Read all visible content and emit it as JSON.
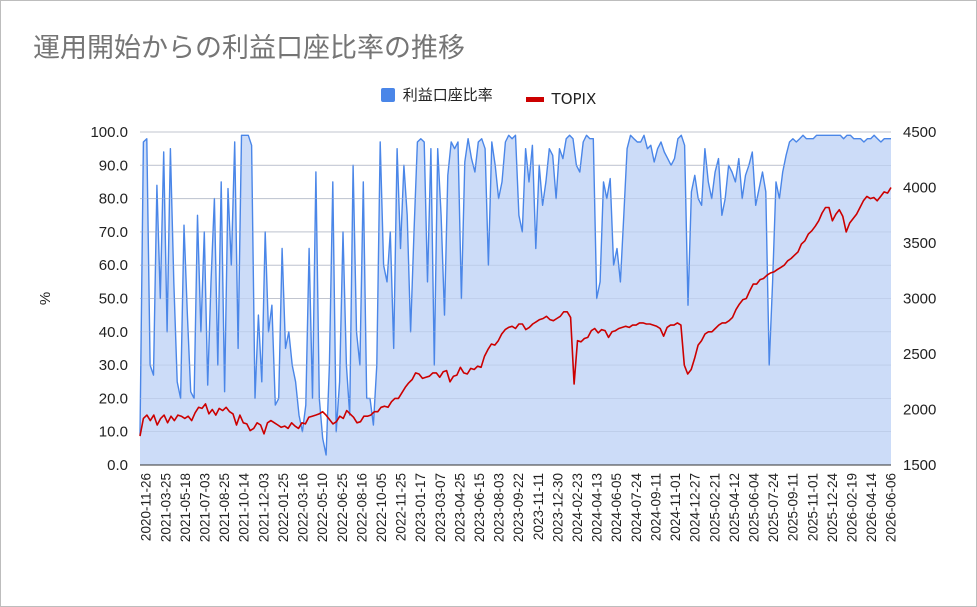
{
  "chart_data": {
    "type": "area",
    "title": "運用開始からの利益口座比率の推移",
    "ylabel_left": "%",
    "ylim_left": [
      0,
      100
    ],
    "yticks_left": [
      "0.0",
      "10.0",
      "20.0",
      "30.0",
      "40.0",
      "50.0",
      "60.0",
      "70.0",
      "80.0",
      "90.0",
      "100.0"
    ],
    "ylim_right": [
      1500,
      4500
    ],
    "yticks_right": [
      "1500",
      "2000",
      "2500",
      "3000",
      "3500",
      "4000",
      "4500"
    ],
    "x_labels": [
      "2020-11-26",
      "2021-03-25",
      "2021-05-18",
      "2021-07-03",
      "2021-08-25",
      "2021-10-14",
      "2021-12-03",
      "2022-01-25",
      "2022-03-16",
      "2022-05-10",
      "2022-06-25",
      "2022-08-16",
      "2022-10-05",
      "2022-11-25",
      "2023-01-17",
      "2023-03-07",
      "2023-04-25",
      "2023-06-15",
      "2023-08-03",
      "2023-09-22",
      "2023-11-11",
      "2023-12-30",
      "2024-02-23",
      "2024-04-13",
      "2024-06-05",
      "2024-07-24",
      "2024-09-11",
      "2024-11-01",
      "2024-12-27",
      "2025-02-21",
      "2025-04-12",
      "2025-06-04",
      "2025-07-24",
      "2025-09-11",
      "2025-11-01",
      "2025-12-24",
      "2026-02-19",
      "2026-04-14",
      "2026-06-06"
    ],
    "series": [
      {
        "name": "利益口座比率",
        "axis": "left",
        "color": "#4a86e8",
        "fill": "#c9daf8",
        "values": [
          9,
          97,
          98,
          30,
          27,
          84,
          50,
          94,
          40,
          95,
          55,
          25,
          20,
          72,
          45,
          22,
          20,
          75,
          40,
          70,
          24,
          55,
          80,
          30,
          85,
          22,
          83,
          60,
          97,
          35,
          99,
          99,
          99,
          96,
          20,
          45,
          25,
          70,
          40,
          48,
          18,
          20,
          65,
          35,
          40,
          30,
          25,
          15,
          10,
          18,
          65,
          20,
          88,
          20,
          8,
          3,
          30,
          85,
          10,
          25,
          70,
          30,
          15,
          90,
          40,
          30,
          85,
          20,
          20,
          12,
          30,
          97,
          60,
          55,
          70,
          35,
          95,
          65,
          90,
          75,
          40,
          70,
          97,
          98,
          97,
          55,
          95,
          30,
          95,
          75,
          45,
          87,
          97,
          95,
          97,
          50,
          91,
          98,
          92,
          88,
          97,
          98,
          95,
          60,
          97,
          90,
          80,
          85,
          97,
          99,
          98,
          99,
          75,
          70,
          95,
          85,
          96,
          65,
          90,
          78,
          85,
          95,
          93,
          80,
          95,
          92,
          98,
          99,
          98,
          90,
          88,
          97,
          99,
          98,
          98,
          50,
          55,
          85,
          80,
          86,
          60,
          65,
          55,
          75,
          95,
          99,
          98,
          97,
          97,
          99,
          95,
          96,
          91,
          95,
          97,
          94,
          92,
          90,
          92,
          98,
          99,
          96,
          48,
          82,
          87,
          80,
          78,
          95,
          85,
          80,
          88,
          92,
          75,
          80,
          90,
          88,
          85,
          92,
          80,
          87,
          90,
          94,
          78,
          83,
          88,
          82,
          30,
          55,
          85,
          80,
          88,
          93,
          97,
          98,
          97,
          98,
          99,
          98,
          98,
          98,
          99,
          99,
          99,
          99,
          99,
          99,
          99,
          99,
          98,
          99,
          99,
          98,
          98,
          98,
          97,
          98,
          98,
          99,
          98,
          97,
          98,
          98,
          98
        ]
      },
      {
        "name": "TOPIX",
        "axis": "right",
        "color": "#cc0000",
        "values": [
          1760,
          1920,
          1950,
          1900,
          1950,
          1860,
          1920,
          1950,
          1880,
          1940,
          1900,
          1950,
          1940,
          1920,
          1940,
          1900,
          1970,
          2020,
          2010,
          2050,
          1960,
          2000,
          1950,
          2010,
          1990,
          2020,
          1980,
          1960,
          1860,
          1950,
          1880,
          1870,
          1810,
          1830,
          1880,
          1860,
          1780,
          1880,
          1900,
          1880,
          1860,
          1840,
          1850,
          1830,
          1880,
          1850,
          1830,
          1880,
          1870,
          1930,
          1940,
          1950,
          1960,
          1980,
          1950,
          1910,
          1870,
          1890,
          1940,
          1920,
          1990,
          1960,
          1930,
          1880,
          1890,
          1940,
          1940,
          1950,
          1980,
          1980,
          2020,
          2030,
          2020,
          2070,
          2100,
          2100,
          2150,
          2200,
          2240,
          2270,
          2330,
          2320,
          2280,
          2290,
          2300,
          2330,
          2330,
          2290,
          2340,
          2350,
          2250,
          2300,
          2310,
          2380,
          2330,
          2320,
          2370,
          2360,
          2390,
          2380,
          2480,
          2540,
          2590,
          2580,
          2620,
          2680,
          2720,
          2740,
          2750,
          2730,
          2770,
          2770,
          2720,
          2740,
          2770,
          2790,
          2810,
          2820,
          2840,
          2810,
          2800,
          2820,
          2840,
          2880,
          2880,
          2830,
          2230,
          2620,
          2610,
          2640,
          2650,
          2710,
          2730,
          2690,
          2720,
          2710,
          2650,
          2700,
          2710,
          2730,
          2740,
          2750,
          2740,
          2760,
          2760,
          2780,
          2780,
          2770,
          2770,
          2760,
          2750,
          2730,
          2660,
          2740,
          2760,
          2760,
          2780,
          2760,
          2400,
          2320,
          2360,
          2460,
          2580,
          2620,
          2680,
          2700,
          2700,
          2730,
          2760,
          2780,
          2780,
          2800,
          2830,
          2900,
          2950,
          2990,
          3000,
          3070,
          3130,
          3130,
          3170,
          3180,
          3210,
          3230,
          3240,
          3260,
          3280,
          3300,
          3340,
          3360,
          3390,
          3420,
          3490,
          3520,
          3580,
          3610,
          3650,
          3700,
          3770,
          3820,
          3820,
          3700,
          3760,
          3800,
          3740,
          3600,
          3680,
          3720,
          3760,
          3820,
          3880,
          3920,
          3900,
          3910,
          3880,
          3920,
          3960,
          3950,
          4000
        ]
      }
    ],
    "legend_position": "top",
    "grid": true
  }
}
